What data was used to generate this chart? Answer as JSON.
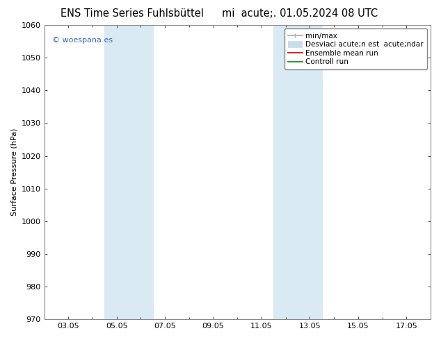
{
  "title_left": "ENS Time Series Fuhlsbüttel",
  "title_right": "mi  acute;. 01.05.2024 08 UTC",
  "ylabel": "Surface Pressure (hPa)",
  "ylim": [
    970,
    1060
  ],
  "yticks": [
    970,
    980,
    990,
    1000,
    1010,
    1020,
    1030,
    1040,
    1050,
    1060
  ],
  "xtick_labels": [
    "03.05",
    "05.05",
    "07.05",
    "09.05",
    "11.05",
    "13.05",
    "15.05",
    "17.05"
  ],
  "xtick_positions": [
    2,
    4,
    6,
    8,
    10,
    12,
    14,
    16
  ],
  "xlim": [
    1,
    17
  ],
  "shaded_bands": [
    {
      "x_start": 3.5,
      "x_end": 5.5,
      "color": "#daeaf5"
    },
    {
      "x_start": 10.5,
      "x_end": 12.5,
      "color": "#daeaf5"
    }
  ],
  "legend_labels": [
    "min/max",
    "Desviaci acute;n est  acute;ndar",
    "Ensemble mean run",
    "Controll run"
  ],
  "legend_colors": [
    "#aaaaaa",
    "#c8dcea",
    "#cc0000",
    "#008800"
  ],
  "watermark": "© woespana.es",
  "watermark_color": "#3366cc",
  "bg_color": "#ffffff",
  "plot_bg_color": "#ffffff",
  "border_color": "#888888",
  "title_fontsize": 10.5,
  "axis_label_fontsize": 8,
  "tick_fontsize": 8,
  "legend_fontsize": 7.5
}
